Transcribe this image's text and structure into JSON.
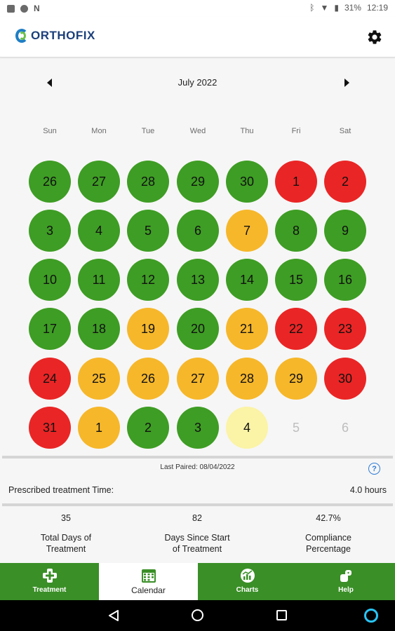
{
  "status_bar": {
    "left_icons": [
      "image-icon",
      "globe-icon",
      "n-icon"
    ],
    "battery": "31%",
    "time": "12:19"
  },
  "app_bar": {
    "logo_text": "ORTHOFIX",
    "settings_icon": "gear-icon"
  },
  "calendar": {
    "month_title": "July 2022",
    "weekdays": [
      "Sun",
      "Mon",
      "Tue",
      "Wed",
      "Thu",
      "Fri",
      "Sat"
    ],
    "status_colors": {
      "green": "#3e9d24",
      "red": "#ea2525",
      "amber": "#f6b72a",
      "pale": "#fbf3a6",
      "none": "transparent"
    },
    "weeks": [
      [
        {
          "day": "26",
          "status": "green"
        },
        {
          "day": "27",
          "status": "green"
        },
        {
          "day": "28",
          "status": "green"
        },
        {
          "day": "29",
          "status": "green"
        },
        {
          "day": "30",
          "status": "green"
        },
        {
          "day": "1",
          "status": "red"
        },
        {
          "day": "2",
          "status": "red"
        }
      ],
      [
        {
          "day": "3",
          "status": "green"
        },
        {
          "day": "4",
          "status": "green"
        },
        {
          "day": "5",
          "status": "green"
        },
        {
          "day": "6",
          "status": "green"
        },
        {
          "day": "7",
          "status": "amber"
        },
        {
          "day": "8",
          "status": "green"
        },
        {
          "day": "9",
          "status": "green"
        }
      ],
      [
        {
          "day": "10",
          "status": "green"
        },
        {
          "day": "11",
          "status": "green"
        },
        {
          "day": "12",
          "status": "green"
        },
        {
          "day": "13",
          "status": "green"
        },
        {
          "day": "14",
          "status": "green"
        },
        {
          "day": "15",
          "status": "green"
        },
        {
          "day": "16",
          "status": "green"
        }
      ],
      [
        {
          "day": "17",
          "status": "green"
        },
        {
          "day": "18",
          "status": "green"
        },
        {
          "day": "19",
          "status": "amber"
        },
        {
          "day": "20",
          "status": "green"
        },
        {
          "day": "21",
          "status": "amber"
        },
        {
          "day": "22",
          "status": "red"
        },
        {
          "day": "23",
          "status": "red"
        }
      ],
      [
        {
          "day": "24",
          "status": "red"
        },
        {
          "day": "25",
          "status": "amber"
        },
        {
          "day": "26",
          "status": "amber"
        },
        {
          "day": "27",
          "status": "amber"
        },
        {
          "day": "28",
          "status": "amber"
        },
        {
          "day": "29",
          "status": "amber"
        },
        {
          "day": "30",
          "status": "red"
        }
      ],
      [
        {
          "day": "31",
          "status": "red"
        },
        {
          "day": "1",
          "status": "amber"
        },
        {
          "day": "2",
          "status": "green"
        },
        {
          "day": "3",
          "status": "green"
        },
        {
          "day": "4",
          "status": "pale"
        },
        {
          "day": "5",
          "status": "none"
        },
        {
          "day": "6",
          "status": "none"
        }
      ]
    ]
  },
  "pairing": {
    "last_paired": "Last Paired: 08/04/2022",
    "help_glyph": "?"
  },
  "prescription": {
    "label": "Prescribed treatment Time:",
    "value": "4.0 hours"
  },
  "stats": [
    {
      "value": "35",
      "label": "Total Days of\nTreatment"
    },
    {
      "value": "82",
      "label": "Days Since Start\nof Treatment"
    },
    {
      "value": "42.7%",
      "label": "Compliance\nPercentage"
    }
  ],
  "bottom_nav": {
    "tabs": [
      {
        "label": "Treatment",
        "icon": "medical-cross-icon",
        "active": false
      },
      {
        "label": "Calendar",
        "icon": "calendar-icon",
        "active": true
      },
      {
        "label": "Charts",
        "icon": "chart-icon",
        "active": false
      },
      {
        "label": "Help",
        "icon": "help-icon",
        "active": false
      }
    ]
  },
  "colors": {
    "nav_green": "#3a8f27",
    "help_blue": "#2f7cd6"
  }
}
